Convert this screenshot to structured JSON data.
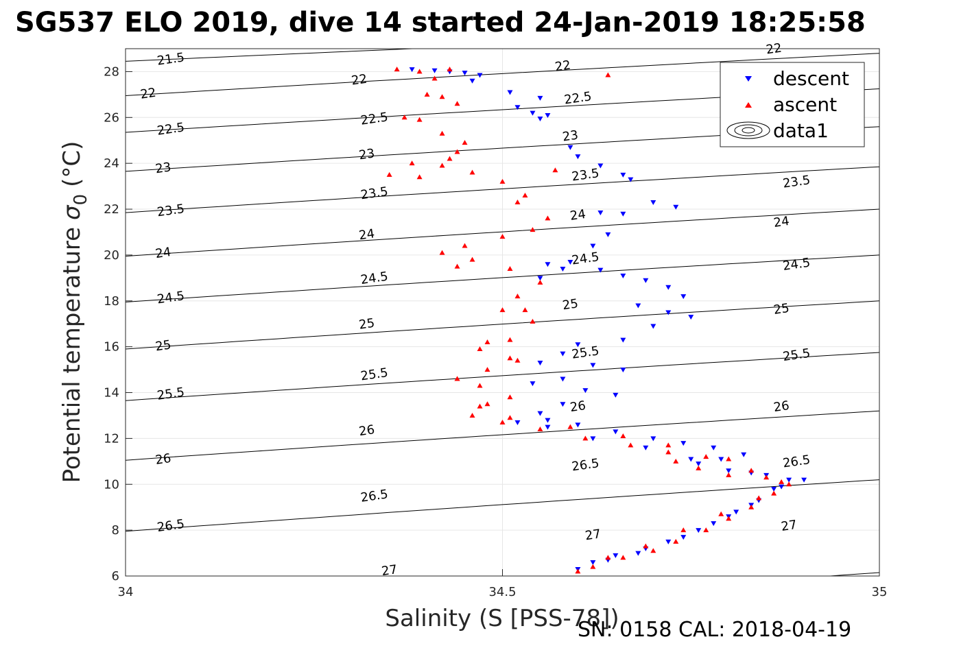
{
  "chart_data": {
    "type": "scatter",
    "title": "SG537 ELO 2019, dive 14 started 24-Jan-2019 18:25:58",
    "xlabel": "Salinity (S [PSS-78])",
    "ylabel": "Potential temperature",
    "ylabel_symbol": "σ",
    "ylabel_subscript": "0",
    "ylabel_unit": "(°C)",
    "footer": "SN: 0158  CAL: 2018-04-19",
    "xlim": [
      34,
      35
    ],
    "ylim": [
      6,
      29
    ],
    "x_ticks": [
      {
        "value": 34,
        "label": "34"
      },
      {
        "value": 34.5,
        "label": "34.5"
      },
      {
        "value": 35,
        "label": "35"
      }
    ],
    "y_ticks": [
      {
        "value": 6,
        "label": "6"
      },
      {
        "value": 8,
        "label": "8"
      },
      {
        "value": 10,
        "label": "10"
      },
      {
        "value": 12,
        "label": "12"
      },
      {
        "value": 14,
        "label": "14"
      },
      {
        "value": 16,
        "label": "16"
      },
      {
        "value": 18,
        "label": "18"
      },
      {
        "value": 20,
        "label": "20"
      },
      {
        "value": 22,
        "label": "22"
      },
      {
        "value": 24,
        "label": "24"
      },
      {
        "value": 26,
        "label": "26"
      },
      {
        "value": 28,
        "label": "28"
      }
    ],
    "grid": true,
    "legend_position": "top-right",
    "legend": [
      {
        "label": "descent",
        "marker": "triangle-down",
        "color": "#0000ff"
      },
      {
        "label": "ascent",
        "marker": "triangle-up",
        "color": "#ff0000"
      },
      {
        "label": "data1",
        "marker": "contour",
        "color": "#000000"
      }
    ],
    "contours": [
      {
        "level": 21.5,
        "label": "21.5",
        "t_at_s34": 28.45,
        "slope": 1.5
      },
      {
        "level": 22.0,
        "label": "22",
        "t_at_s34": 26.95,
        "slope": 2.0
      },
      {
        "level": 22.5,
        "label": "22.5",
        "t_at_s34": 25.35,
        "slope": 2.05
      },
      {
        "level": 23.0,
        "label": "23",
        "t_at_s34": 23.65,
        "slope": 2.1
      },
      {
        "level": 23.5,
        "label": "23.5",
        "t_at_s34": 21.85,
        "slope": 2.15
      },
      {
        "level": 24.0,
        "label": "24",
        "t_at_s34": 19.95,
        "slope": 2.2
      },
      {
        "level": 24.5,
        "label": "24.5",
        "t_at_s34": 17.95,
        "slope": 2.2
      },
      {
        "level": 25.0,
        "label": "25",
        "t_at_s34": 15.9,
        "slope": 2.25
      },
      {
        "level": 25.5,
        "label": "25.5",
        "t_at_s34": 13.65,
        "slope": 2.25
      },
      {
        "level": 26.0,
        "label": "26",
        "t_at_s34": 11.05,
        "slope": 2.3
      },
      {
        "level": 26.5,
        "label": "26.5",
        "t_at_s34": 7.95,
        "slope": 2.4
      },
      {
        "level": 27.0,
        "label": "27",
        "t_at_s34": 3.7,
        "slope": 2.6
      }
    ],
    "contour_label_positions": [
      [
        34.06,
        28.55,
        "21.5"
      ],
      [
        34.03,
        27.05,
        "22"
      ],
      [
        34.06,
        25.5,
        "22.5"
      ],
      [
        34.05,
        23.8,
        "23"
      ],
      [
        34.06,
        21.95,
        "23.5"
      ],
      [
        34.05,
        20.1,
        "24"
      ],
      [
        34.06,
        18.15,
        "24.5"
      ],
      [
        34.05,
        16.05,
        "25"
      ],
      [
        34.06,
        13.95,
        "25.5"
      ],
      [
        34.05,
        11.1,
        "26"
      ],
      [
        34.06,
        8.2,
        "26.5"
      ],
      [
        34.31,
        27.65,
        "22"
      ],
      [
        34.33,
        25.95,
        "22.5"
      ],
      [
        34.32,
        24.4,
        "23"
      ],
      [
        34.33,
        22.7,
        "23.5"
      ],
      [
        34.32,
        20.9,
        "24"
      ],
      [
        34.33,
        19.0,
        "24.5"
      ],
      [
        34.32,
        17.0,
        "25"
      ],
      [
        34.33,
        14.8,
        "25.5"
      ],
      [
        34.32,
        12.35,
        "26"
      ],
      [
        34.33,
        9.5,
        "26.5"
      ],
      [
        34.35,
        6.25,
        "27"
      ],
      [
        34.58,
        28.25,
        "22"
      ],
      [
        34.6,
        26.85,
        "22.5"
      ],
      [
        34.59,
        25.2,
        "23"
      ],
      [
        34.61,
        23.5,
        "23.5"
      ],
      [
        34.6,
        21.75,
        "24"
      ],
      [
        34.61,
        19.85,
        "24.5"
      ],
      [
        34.59,
        17.85,
        "25"
      ],
      [
        34.61,
        15.75,
        "25.5"
      ],
      [
        34.6,
        13.4,
        "26"
      ],
      [
        34.61,
        10.85,
        "26.5"
      ],
      [
        34.62,
        7.8,
        "27"
      ],
      [
        34.86,
        29.0,
        "22"
      ],
      [
        34.89,
        23.2,
        "23.5"
      ],
      [
        34.87,
        21.45,
        "24"
      ],
      [
        34.89,
        19.6,
        "24.5"
      ],
      [
        34.87,
        17.65,
        "25"
      ],
      [
        34.89,
        15.65,
        "25.5"
      ],
      [
        34.87,
        13.4,
        "26"
      ],
      [
        34.89,
        11.0,
        "26.5"
      ],
      [
        34.88,
        8.2,
        "27"
      ]
    ],
    "series": [
      {
        "name": "descent",
        "marker": "triangle-down",
        "color": "#0000ff",
        "points": [
          [
            34.38,
            28.1
          ],
          [
            34.41,
            28.05
          ],
          [
            34.43,
            28.0
          ],
          [
            34.45,
            27.95
          ],
          [
            34.47,
            27.85
          ],
          [
            34.46,
            27.6
          ],
          [
            34.51,
            27.1
          ],
          [
            34.55,
            26.85
          ],
          [
            34.52,
            26.45
          ],
          [
            34.54,
            26.2
          ],
          [
            34.56,
            26.1
          ],
          [
            34.55,
            25.95
          ],
          [
            34.59,
            24.7
          ],
          [
            34.6,
            24.3
          ],
          [
            34.63,
            23.9
          ],
          [
            34.66,
            23.5
          ],
          [
            34.67,
            23.3
          ],
          [
            34.7,
            22.3
          ],
          [
            34.73,
            22.1
          ],
          [
            34.63,
            21.85
          ],
          [
            34.66,
            21.8
          ],
          [
            34.64,
            20.9
          ],
          [
            34.62,
            20.4
          ],
          [
            34.59,
            19.7
          ],
          [
            34.56,
            19.6
          ],
          [
            34.58,
            19.4
          ],
          [
            34.55,
            19.0
          ],
          [
            34.63,
            19.35
          ],
          [
            34.66,
            19.1
          ],
          [
            34.69,
            18.9
          ],
          [
            34.72,
            18.6
          ],
          [
            34.74,
            18.2
          ],
          [
            34.68,
            17.8
          ],
          [
            34.72,
            17.5
          ],
          [
            34.75,
            17.3
          ],
          [
            34.7,
            16.9
          ],
          [
            34.66,
            16.3
          ],
          [
            34.6,
            16.1
          ],
          [
            34.58,
            15.7
          ],
          [
            34.55,
            15.3
          ],
          [
            34.62,
            15.2
          ],
          [
            34.66,
            15.0
          ],
          [
            34.58,
            14.6
          ],
          [
            34.54,
            14.4
          ],
          [
            34.61,
            14.1
          ],
          [
            34.65,
            13.9
          ],
          [
            34.58,
            13.5
          ],
          [
            34.55,
            13.1
          ],
          [
            34.56,
            12.8
          ],
          [
            34.6,
            12.6
          ],
          [
            34.65,
            12.3
          ],
          [
            34.7,
            12.0
          ],
          [
            34.74,
            11.8
          ],
          [
            34.78,
            11.6
          ],
          [
            34.82,
            11.3
          ],
          [
            34.79,
            11.1
          ],
          [
            34.76,
            10.9
          ],
          [
            34.8,
            10.6
          ],
          [
            34.85,
            10.4
          ],
          [
            34.88,
            10.2
          ],
          [
            34.86,
            9.8
          ],
          [
            34.84,
            9.3
          ],
          [
            34.81,
            8.8
          ],
          [
            34.78,
            8.3
          ],
          [
            34.74,
            7.7
          ],
          [
            34.69,
            7.2
          ],
          [
            34.65,
            6.9
          ],
          [
            34.62,
            6.6
          ],
          [
            34.6,
            6.3
          ],
          [
            34.64,
            6.7
          ],
          [
            34.68,
            7.0
          ],
          [
            34.72,
            7.5
          ],
          [
            34.76,
            8.0
          ],
          [
            34.8,
            8.6
          ],
          [
            34.83,
            9.1
          ],
          [
            34.87,
            9.9
          ],
          [
            34.9,
            10.2
          ],
          [
            34.83,
            10.5
          ],
          [
            34.75,
            11.1
          ],
          [
            34.69,
            11.6
          ],
          [
            34.62,
            12.0
          ],
          [
            34.56,
            12.5
          ],
          [
            34.52,
            12.7
          ]
        ]
      },
      {
        "name": "ascent",
        "marker": "triangle-up",
        "color": "#ff0000",
        "points": [
          [
            34.6,
            6.2
          ],
          [
            34.62,
            6.4
          ],
          [
            34.66,
            6.8
          ],
          [
            34.7,
            7.1
          ],
          [
            34.73,
            7.5
          ],
          [
            34.77,
            8.0
          ],
          [
            34.8,
            8.5
          ],
          [
            34.83,
            9.0
          ],
          [
            34.86,
            9.6
          ],
          [
            34.88,
            10.0
          ],
          [
            34.85,
            10.3
          ],
          [
            34.8,
            10.4
          ],
          [
            34.76,
            10.7
          ],
          [
            34.73,
            11.0
          ],
          [
            34.77,
            11.2
          ],
          [
            34.72,
            11.4
          ],
          [
            34.67,
            11.7
          ],
          [
            34.61,
            12.0
          ],
          [
            34.55,
            12.4
          ],
          [
            34.5,
            12.7
          ],
          [
            34.46,
            13.0
          ],
          [
            34.48,
            13.5
          ],
          [
            34.51,
            13.8
          ],
          [
            34.47,
            14.3
          ],
          [
            34.44,
            14.6
          ],
          [
            34.48,
            15.0
          ],
          [
            34.51,
            15.5
          ],
          [
            34.47,
            15.9
          ],
          [
            34.51,
            16.3
          ],
          [
            34.54,
            17.1
          ],
          [
            34.5,
            17.6
          ],
          [
            34.52,
            18.2
          ],
          [
            34.55,
            18.8
          ],
          [
            34.51,
            19.4
          ],
          [
            34.46,
            19.8
          ],
          [
            34.42,
            20.1
          ],
          [
            34.45,
            20.4
          ],
          [
            34.5,
            20.8
          ],
          [
            34.54,
            21.1
          ],
          [
            34.56,
            21.6
          ],
          [
            34.53,
            22.6
          ],
          [
            34.5,
            23.2
          ],
          [
            34.46,
            23.6
          ],
          [
            34.42,
            23.9
          ],
          [
            34.38,
            24.0
          ],
          [
            34.35,
            23.5
          ],
          [
            34.39,
            23.4
          ],
          [
            34.43,
            24.2
          ],
          [
            34.44,
            24.5
          ],
          [
            34.45,
            24.9
          ],
          [
            34.42,
            25.3
          ],
          [
            34.39,
            25.9
          ],
          [
            34.37,
            26.0
          ],
          [
            34.44,
            26.6
          ],
          [
            34.42,
            26.9
          ],
          [
            34.4,
            27.0
          ],
          [
            34.41,
            27.7
          ],
          [
            34.39,
            28.0
          ],
          [
            34.43,
            28.1
          ],
          [
            34.36,
            28.1
          ],
          [
            34.64,
            27.85
          ],
          [
            34.57,
            23.7
          ],
          [
            34.52,
            22.3
          ],
          [
            34.44,
            19.5
          ],
          [
            34.53,
            17.6
          ],
          [
            34.48,
            16.2
          ],
          [
            34.52,
            15.4
          ],
          [
            34.44,
            14.6
          ],
          [
            34.47,
            13.4
          ],
          [
            34.51,
            12.9
          ],
          [
            34.59,
            12.5
          ],
          [
            34.66,
            12.1
          ],
          [
            34.72,
            11.7
          ],
          [
            34.8,
            11.1
          ],
          [
            34.83,
            10.6
          ],
          [
            34.87,
            10.1
          ],
          [
            34.84,
            9.4
          ],
          [
            34.79,
            8.7
          ],
          [
            34.74,
            8.0
          ],
          [
            34.69,
            7.3
          ],
          [
            34.64,
            6.8
          ]
        ]
      }
    ]
  }
}
